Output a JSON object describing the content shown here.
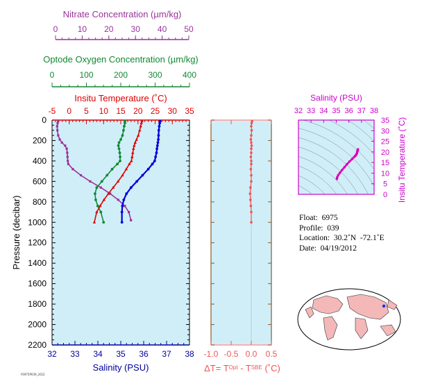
{
  "axes": {
    "nitrate": {
      "title": "Nitrate Concentration (µm/kg)",
      "ticks": [
        "0",
        "10",
        "20",
        "30",
        "40",
        "50"
      ],
      "range": [
        0,
        50
      ],
      "color": "#993399"
    },
    "oxygen": {
      "title": "Optode Oxygen Concentration (µm/kg)",
      "ticks": [
        "0",
        "100",
        "200",
        "300",
        "400"
      ],
      "range": [
        0,
        400
      ],
      "color": "#118833"
    },
    "temperature": {
      "title": "Insitu Temperature (˚C)",
      "ticks": [
        "-5",
        "0",
        "5",
        "10",
        "15",
        "20",
        "25",
        "30",
        "35"
      ],
      "range": [
        -5,
        35
      ],
      "color": "#dd0000"
    },
    "salinity": {
      "title": "Salinity (PSU)",
      "ticks": [
        "32",
        "33",
        "34",
        "35",
        "36",
        "37",
        "38"
      ],
      "range": [
        32,
        38
      ],
      "color": "#000099"
    },
    "pressure": {
      "title": "Pressure (decibar)",
      "ticks": [
        "0",
        "200",
        "400",
        "600",
        "800",
        "1000",
        "1200",
        "1400",
        "1600",
        "1800",
        "2000",
        "2200"
      ],
      "range": [
        0,
        2200
      ]
    },
    "delta_t": {
      "title_prefix": "ΔT= T",
      "sup1": "Opt",
      "mid": " - T",
      "sup2": "SBE",
      "suffix": " (˚C)",
      "ticks": [
        "-1.0",
        "-0.5",
        "0.0",
        "0.5"
      ],
      "range": [
        -1.0,
        0.5
      ],
      "color": "#ee5555"
    },
    "ts_salinity": {
      "title": "Salinity (PSU)",
      "ticks": [
        "32",
        "33",
        "34",
        "35",
        "36",
        "37",
        "38"
      ],
      "range": [
        32,
        38
      ],
      "color": "#cc00cc"
    },
    "ts_temperature": {
      "title": "Insitu Temperature (˚C)",
      "ticks": [
        "0",
        "5",
        "10",
        "15",
        "20",
        "25",
        "30",
        "35"
      ],
      "range": [
        0,
        35
      ],
      "color": "#cc00cc"
    }
  },
  "info": {
    "float": "Float:  6975",
    "profile": "Profile:  039",
    "location": "Location:  30.2˚N  -72.1˚E",
    "date": "Date:  04/19/2012"
  },
  "footer": "F6975P039_2012",
  "colors": {
    "panel_bg": "#d0eef8",
    "frame_red": "#ff9999",
    "frame_dark": "#8a5a2a",
    "land": "#f4b8b8"
  },
  "chart_data": [
    {
      "type": "line",
      "title": "",
      "y_axis": "Pressure (decibar)",
      "ylim": [
        0,
        2200
      ],
      "grid": false,
      "series": [
        {
          "name": "Nitrate Concentration (µm/kg)",
          "color": "#993399",
          "x": [
            1,
            0.8,
            0.6,
            0.7,
            1,
            1.6,
            2.4,
            3.6,
            4.2,
            4.4,
            4.5,
            4.6,
            4.8,
            6.5,
            9.5,
            13,
            17,
            20.5,
            23.5,
            26,
            27.5,
            28.3
          ],
          "y": [
            10,
            30,
            60,
            100,
            150,
            190,
            220,
            250,
            280,
            320,
            360,
            400,
            430,
            480,
            540,
            600,
            660,
            720,
            780,
            840,
            900,
            980
          ]
        },
        {
          "name": "Optode Oxygen Concentration (µm/kg)",
          "color": "#118833",
          "x": [
            212,
            212,
            210,
            208,
            205,
            200,
            195,
            193,
            195,
            197,
            198,
            198,
            190,
            175,
            160,
            145,
            130,
            125,
            127,
            133,
            142,
            150
          ],
          "y": [
            10,
            30,
            60,
            100,
            150,
            190,
            220,
            250,
            280,
            320,
            360,
            400,
            430,
            480,
            540,
            600,
            660,
            720,
            780,
            840,
            900,
            1000
          ]
        },
        {
          "name": "Insitu Temperature (˚C)",
          "color": "#dd0000",
          "x": [
            21.2,
            21.0,
            20.8,
            20.5,
            20.1,
            19.6,
            19.2,
            18.9,
            18.7,
            18.5,
            18.3,
            18.1,
            17.5,
            16.6,
            15.5,
            14.2,
            12.8,
            11.4,
            10.1,
            9.0,
            8.0,
            7.3
          ],
          "y": [
            10,
            30,
            60,
            100,
            150,
            190,
            220,
            250,
            280,
            320,
            360,
            400,
            430,
            480,
            540,
            600,
            660,
            720,
            780,
            840,
            900,
            1000
          ]
        },
        {
          "name": "Salinity (PSU)",
          "color": "#0000dd",
          "x": [
            36.72,
            36.7,
            36.68,
            36.66,
            36.65,
            36.64,
            36.62,
            36.6,
            36.58,
            36.56,
            36.52,
            36.48,
            36.38,
            36.2,
            35.95,
            35.7,
            35.45,
            35.25,
            35.13,
            35.07,
            35.05,
            35.05
          ],
          "y": [
            10,
            30,
            60,
            100,
            150,
            190,
            220,
            250,
            280,
            320,
            360,
            400,
            430,
            480,
            540,
            600,
            660,
            720,
            780,
            840,
            900,
            1000
          ]
        }
      ]
    },
    {
      "type": "line",
      "title": "",
      "y_axis": "Pressure (decibar)",
      "ylim": [
        0,
        2200
      ],
      "xlim": [
        -1.0,
        0.5
      ],
      "series": [
        {
          "name": "ΔT",
          "color": "#ee5555",
          "x": [
            0.02,
            0.01,
            0.0,
            0.01,
            0.0,
            -0.01,
            0.0,
            0.01,
            0.0,
            0.0,
            -0.01,
            0.0,
            0.0,
            -0.01,
            0.0,
            0.0,
            -0.02,
            -0.03,
            -0.02,
            -0.01,
            0.0,
            0.0
          ],
          "y": [
            10,
            30,
            60,
            100,
            150,
            190,
            220,
            250,
            280,
            320,
            360,
            400,
            430,
            480,
            540,
            600,
            660,
            720,
            780,
            840,
            900,
            1000
          ]
        }
      ]
    },
    {
      "type": "scatter",
      "title": "",
      "xlabel": "Salinity (PSU)",
      "ylabel": "Insitu Temperature (˚C)",
      "xlim": [
        32,
        38
      ],
      "ylim": [
        0,
        35
      ],
      "series": [
        {
          "name": "T-S",
          "color": "#dd00bb",
          "x": [
            36.72,
            36.7,
            36.68,
            36.66,
            36.64,
            36.6,
            36.56,
            36.5,
            36.4,
            36.25,
            36.05,
            35.85,
            35.65,
            35.45,
            35.28,
            35.15,
            35.07,
            35.05
          ],
          "y": [
            21.2,
            20.9,
            20.5,
            20.0,
            19.4,
            18.9,
            18.5,
            18.1,
            17.5,
            16.6,
            15.5,
            14.2,
            12.8,
            11.4,
            10.1,
            9.0,
            8.0,
            7.3
          ]
        }
      ]
    }
  ]
}
